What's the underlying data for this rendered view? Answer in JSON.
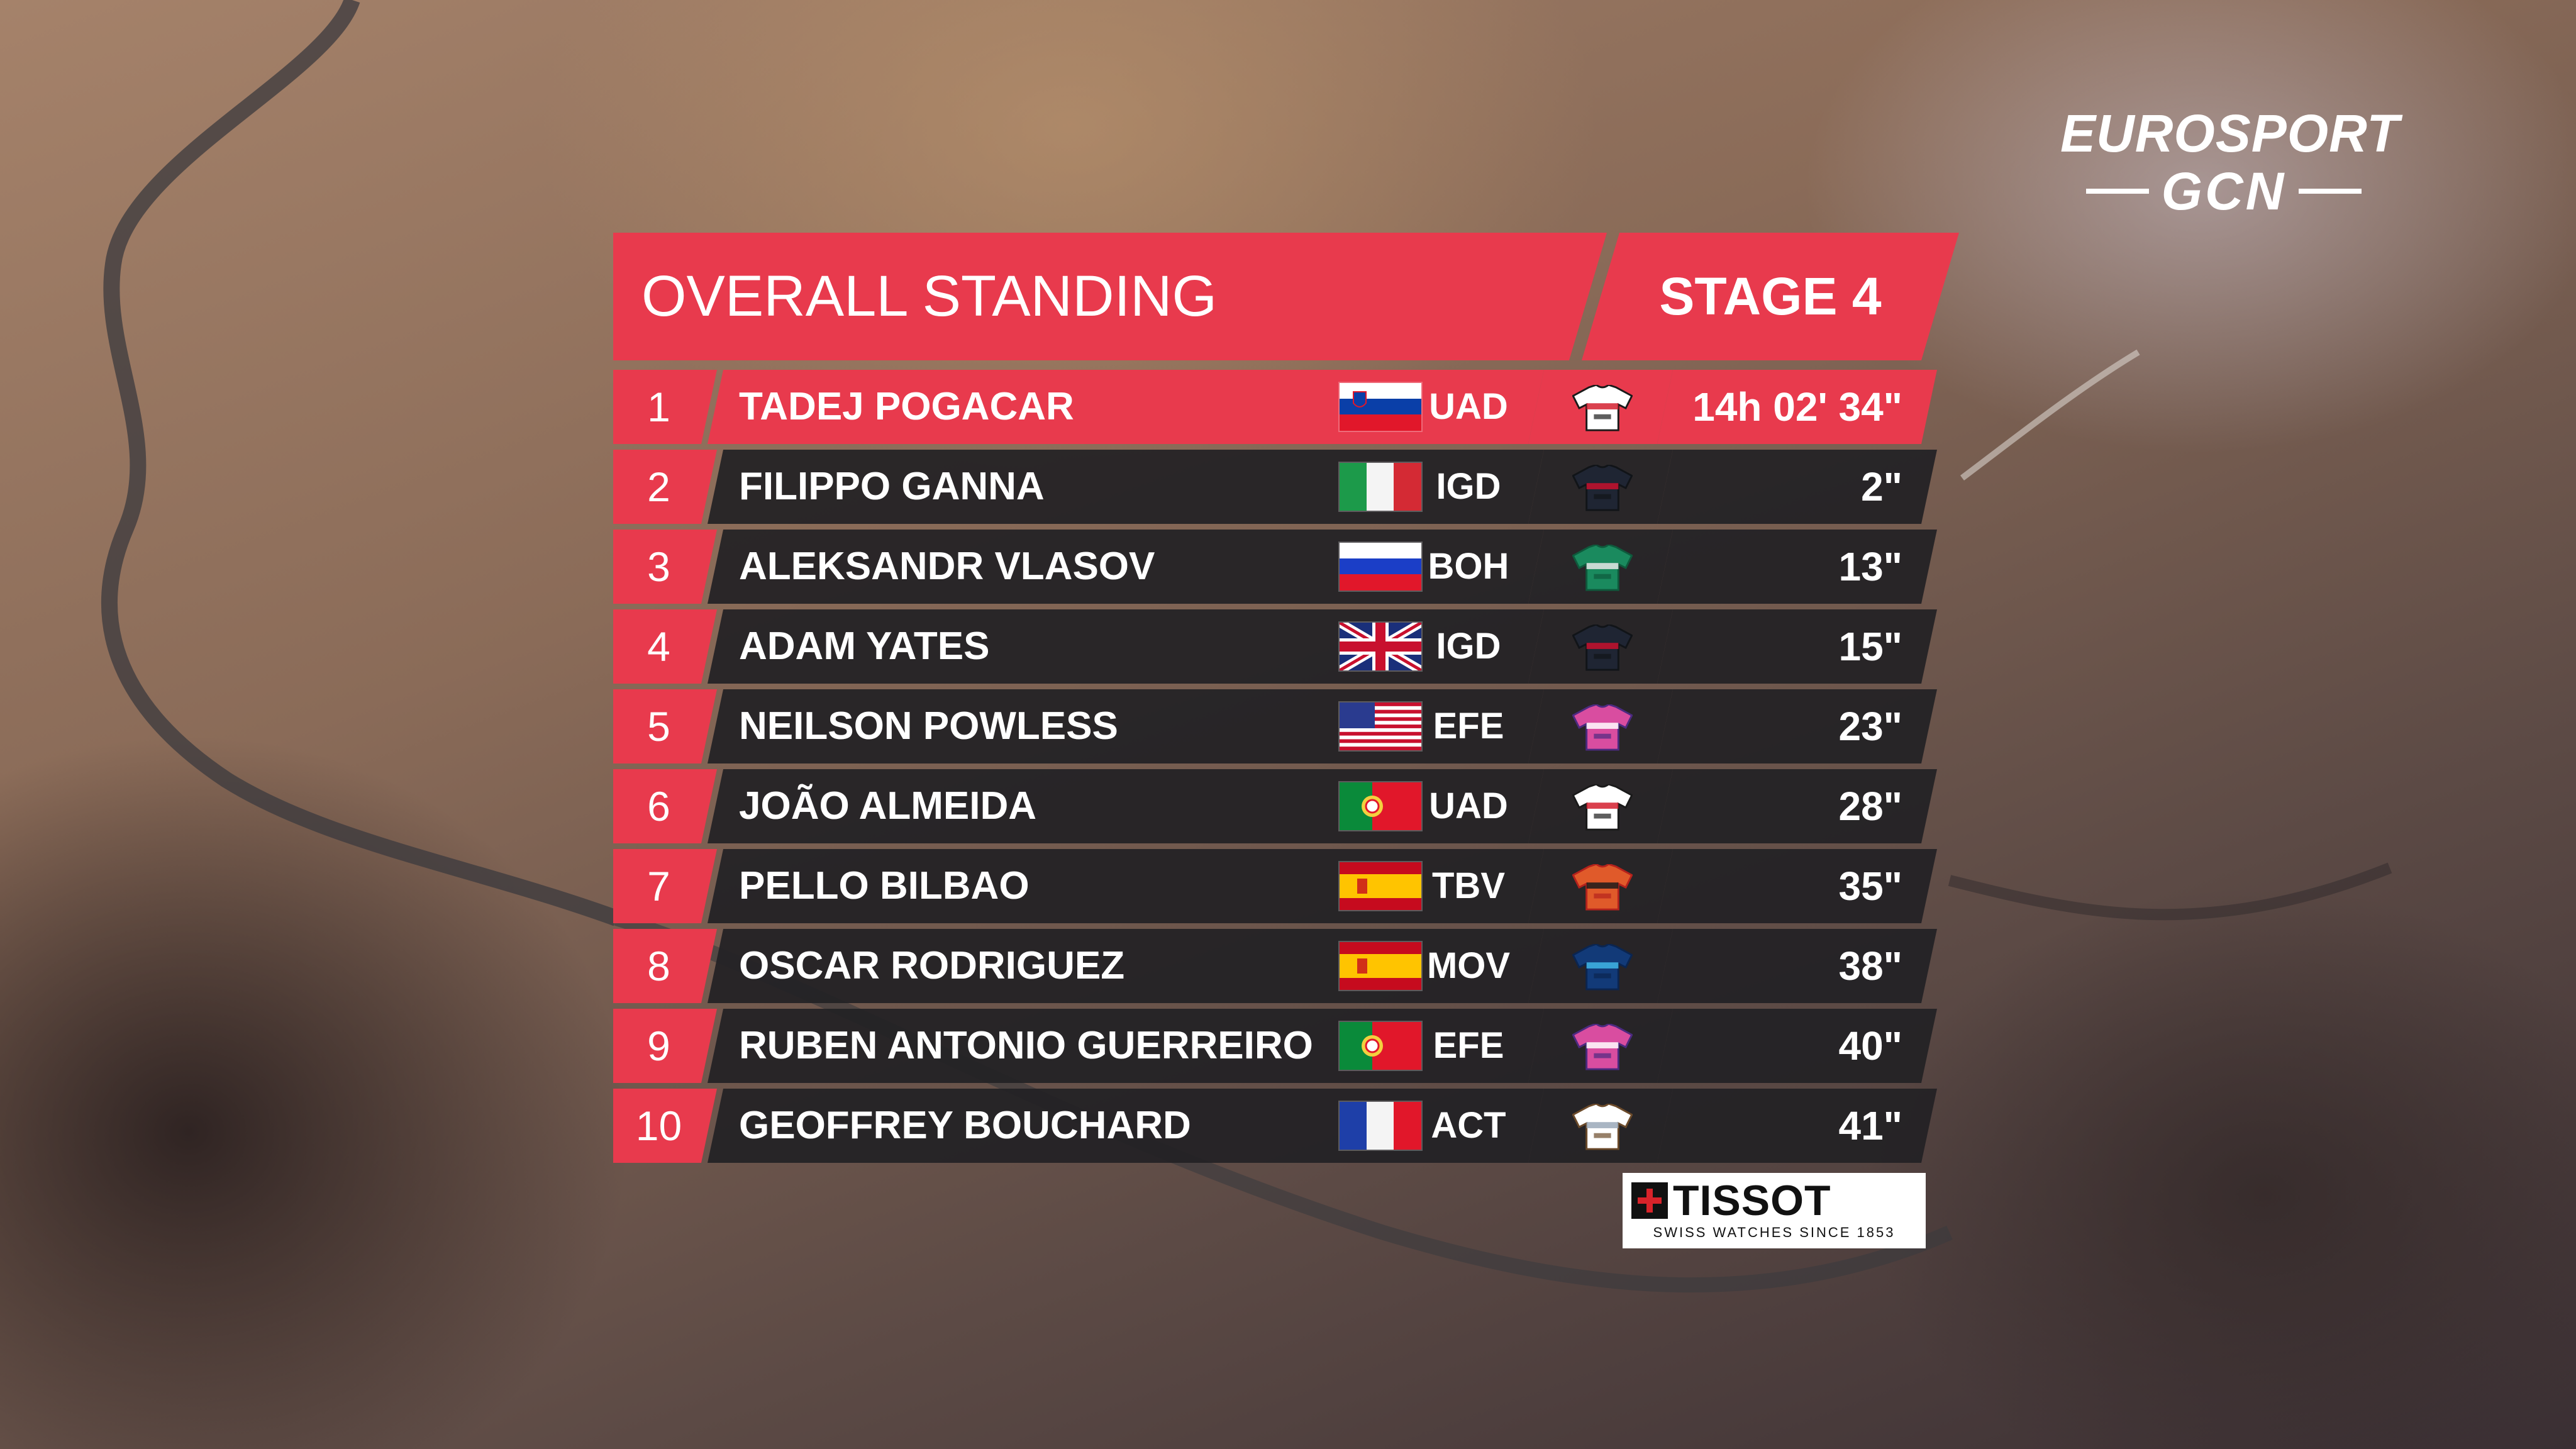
{
  "broadcaster": {
    "line1": "EUROSPORT",
    "line2": "GCN"
  },
  "header": {
    "title": "OVERALL STANDING",
    "stage": "STAGE 4"
  },
  "standings": [
    {
      "pos": "1",
      "name": "TADEJ POGACAR",
      "flag": "slovenia",
      "team": "UAD",
      "jersey": "uae",
      "time": "14h 02' 34\""
    },
    {
      "pos": "2",
      "name": "FILIPPO GANNA",
      "flag": "italy",
      "team": "IGD",
      "jersey": "ineos",
      "time": "2\""
    },
    {
      "pos": "3",
      "name": "ALEKSANDR VLASOV",
      "flag": "russia",
      "team": "BOH",
      "jersey": "bora",
      "time": "13\""
    },
    {
      "pos": "4",
      "name": "ADAM YATES",
      "flag": "uk",
      "team": "IGD",
      "jersey": "ineos",
      "time": "15\""
    },
    {
      "pos": "5",
      "name": "NEILSON POWLESS",
      "flag": "usa",
      "team": "EFE",
      "jersey": "ef",
      "time": "23\""
    },
    {
      "pos": "6",
      "name": "JOÃO ALMEIDA",
      "flag": "portugal",
      "team": "UAD",
      "jersey": "uae",
      "time": "28\""
    },
    {
      "pos": "7",
      "name": "PELLO BILBAO",
      "flag": "spain",
      "team": "TBV",
      "jersey": "bahrain",
      "time": "35\""
    },
    {
      "pos": "8",
      "name": "OSCAR RODRIGUEZ",
      "flag": "spain",
      "team": "MOV",
      "jersey": "movistar",
      "time": "38\""
    },
    {
      "pos": "9",
      "name": "RUBEN ANTONIO GUERREIRO",
      "flag": "portugal",
      "team": "EFE",
      "jersey": "ef",
      "time": "40\""
    },
    {
      "pos": "10",
      "name": "GEOFFREY BOUCHARD",
      "flag": "france",
      "team": "ACT",
      "jersey": "ag2r",
      "time": "41\""
    }
  ],
  "sponsor": {
    "brand": "TISSOT",
    "tagline": "SWISS WATCHES SINCE 1853"
  },
  "colors": {
    "accent": "#e83a4d",
    "row_bg": "#222125"
  }
}
